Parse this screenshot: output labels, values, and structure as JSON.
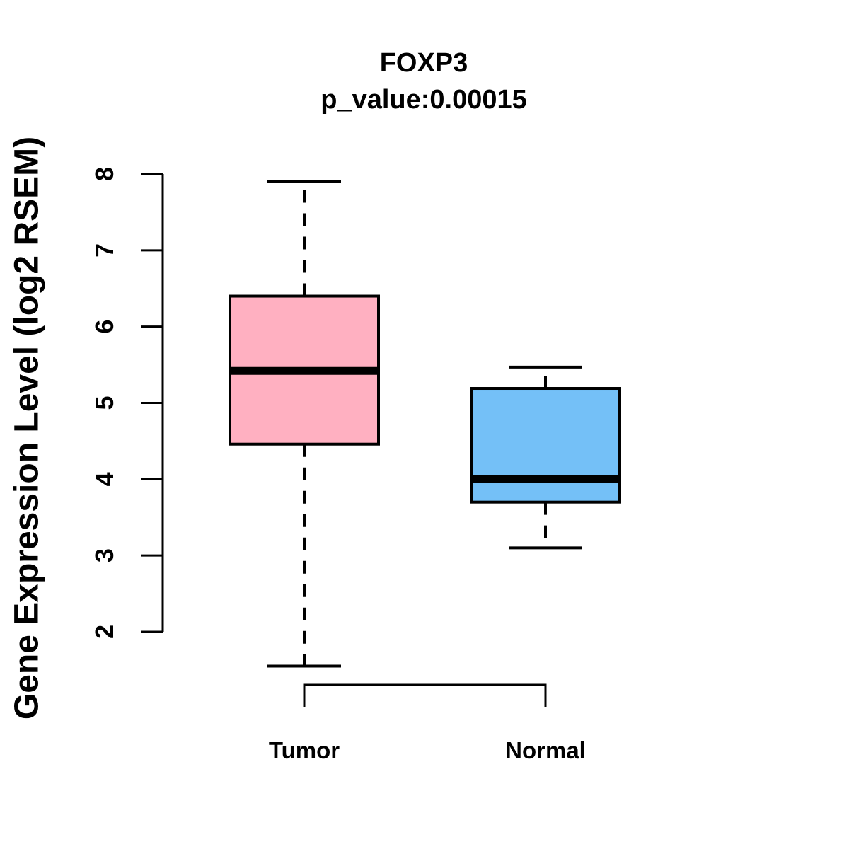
{
  "chart_data": {
    "type": "boxplot",
    "title": "FOXP3",
    "subtitle": "p_value:0.00015",
    "ylabel": "Gene Expression Level (log2 RSEM)",
    "xlabel": "",
    "ylim": [
      2,
      8
    ],
    "yticks": [
      "2",
      "3",
      "4",
      "5",
      "6",
      "7",
      "8"
    ],
    "whisker_style": "dashed",
    "grid": "off",
    "groups": [
      {
        "name": "Tumor",
        "fill_color": "#ffb0c1",
        "stats": {
          "lower_whisker": 1.55,
          "q1": 4.46,
          "median": 5.42,
          "q3": 6.4,
          "upper_whisker": 7.9
        }
      },
      {
        "name": "Normal",
        "fill_color": "#74c0f7",
        "stats": {
          "lower_whisker": 3.1,
          "q1": 3.7,
          "median": 4.0,
          "q3": 5.19,
          "upper_whisker": 5.47
        }
      }
    ],
    "colors": {
      "stroke": "#000000",
      "background": "#ffffff"
    }
  }
}
